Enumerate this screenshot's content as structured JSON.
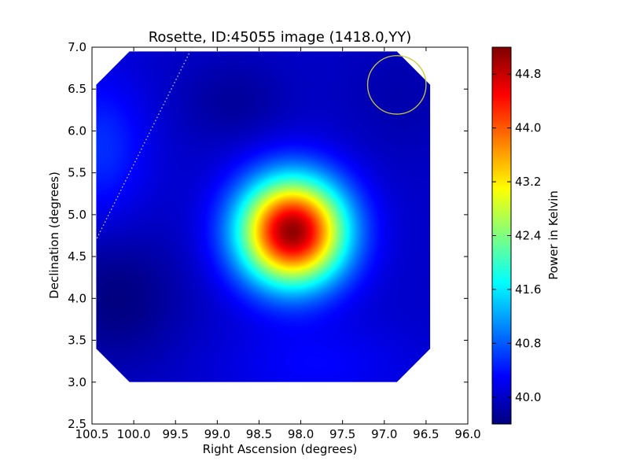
{
  "chart_data": {
    "type": "heatmap",
    "title": "Rosette, ID:45055 image (1418.0,YY)",
    "xlabel": "Right Ascension (degrees)",
    "ylabel": "Declination (degrees)",
    "xlim": [
      100.5,
      96.0
    ],
    "ylim": [
      2.5,
      7.0
    ],
    "x_ticks": [
      "100.5",
      "100.0",
      "99.5",
      "99.0",
      "98.5",
      "98.0",
      "97.5",
      "97.0",
      "96.5",
      "96.0"
    ],
    "y_ticks": [
      "2.5",
      "3.0",
      "3.5",
      "4.0",
      "4.5",
      "5.0",
      "5.5",
      "6.0",
      "6.5",
      "7.0"
    ],
    "colorbar": {
      "label": "Power in Kelvin",
      "range": [
        39.6,
        45.2
      ],
      "ticks": [
        "40.0",
        "40.8",
        "41.6",
        "42.4",
        "43.2",
        "44.0",
        "44.8"
      ],
      "colormap": "jet"
    },
    "map_extent": {
      "ra": [
        100.45,
        96.45
      ],
      "dec": [
        3.0,
        6.95
      ],
      "corner_cut_deg": 0.4
    },
    "background_level": 40.0,
    "features": [
      {
        "kind": "peak",
        "ra": 98.1,
        "dec": 4.8,
        "value": 45.1,
        "sigma_ra": 0.45,
        "sigma_dec": 0.45
      },
      {
        "kind": "minimum",
        "ra": 100.2,
        "dec": 4.0,
        "value": 39.6,
        "sigma_ra": 0.55,
        "sigma_dec": 0.55
      },
      {
        "kind": "minimum",
        "ra": 98.8,
        "dec": 6.35,
        "value": 39.75,
        "sigma_ra": 0.45,
        "sigma_dec": 0.35
      },
      {
        "kind": "minimum",
        "ra": 96.8,
        "dec": 6.4,
        "value": 39.85,
        "sigma_ra": 0.5,
        "sigma_dec": 0.5
      },
      {
        "kind": "excess",
        "ra": 100.4,
        "dec": 5.8,
        "value": 40.55,
        "sigma_ra": 0.4,
        "sigma_dec": 0.6
      },
      {
        "kind": "excess",
        "ra": 97.8,
        "dec": 3.2,
        "value": 40.3,
        "sigma_ra": 0.8,
        "sigma_dec": 0.35
      }
    ],
    "beam_circle": {
      "ra": 96.85,
      "dec": 6.55,
      "radius_deg": 0.35,
      "color": "#c9c93a"
    },
    "dotted_line": {
      "from": [
        99.3,
        7.0
      ],
      "to": [
        100.45,
        4.7
      ],
      "color": "#dddddd"
    },
    "grid": false
  }
}
